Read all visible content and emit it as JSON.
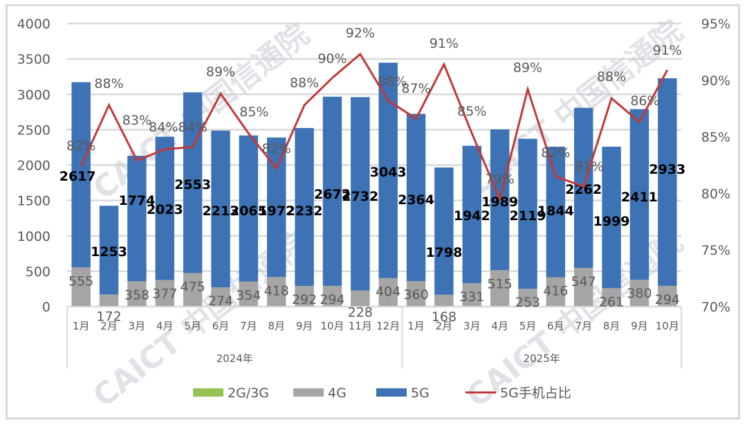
{
  "chart_data": {
    "type": "bar",
    "subtype": "stacked bar + line (dual axis)",
    "title": "",
    "categories": [
      "1月",
      "2月",
      "3月",
      "4月",
      "5月",
      "6月",
      "7月",
      "8月",
      "9月",
      "10月",
      "11月",
      "12月",
      "1月",
      "2月",
      "3月",
      "4月",
      "5月",
      "6月",
      "7月",
      "8月",
      "9月",
      "10月"
    ],
    "category_groups": [
      {
        "label": "2024年",
        "start": 0,
        "count": 12
      },
      {
        "label": "2025年",
        "start": 12,
        "count": 10
      }
    ],
    "series": [
      {
        "name": "2G/3G",
        "type": "bar",
        "axis": "left",
        "color": "#92c353",
        "values": [
          0,
          0,
          0,
          0,
          0,
          0,
          0,
          0,
          0,
          0,
          0,
          0,
          0,
          0,
          0,
          0,
          0,
          0,
          0,
          0,
          0,
          0
        ]
      },
      {
        "name": "4G",
        "type": "bar",
        "axis": "left",
        "color": "#a5a5a5",
        "values": [
          555,
          172,
          358,
          377,
          475,
          274,
          354,
          418,
          292,
          294,
          228,
          404,
          360,
          168,
          331,
          515,
          253,
          416,
          547,
          261,
          380,
          294
        ]
      },
      {
        "name": "5G",
        "type": "bar",
        "axis": "left",
        "color": "#3d72b4",
        "values": [
          2617,
          1253,
          1774,
          2023,
          2553,
          2213,
          2065,
          1972,
          2232,
          2672,
          2732,
          3043,
          2364,
          1798,
          1942,
          1989,
          2119,
          1844,
          2262,
          1999,
          2411,
          2933
        ]
      },
      {
        "name": "5G手机占比",
        "type": "line",
        "axis": "right",
        "color": "#c0393b",
        "values": [
          82,
          88,
          83,
          84,
          84,
          89,
          85,
          82,
          88,
          90,
          92,
          88,
          87,
          91,
          85,
          79,
          89,
          82,
          81,
          88,
          86,
          91
        ],
        "unit": "%"
      }
    ],
    "left_axis": {
      "min": 0,
      "max": 4000,
      "ticks": [
        0,
        500,
        1000,
        1500,
        2000,
        2500,
        3000,
        3500,
        4000
      ]
    },
    "right_axis": {
      "min": 70,
      "max": 95,
      "ticks": [
        "70%",
        "75%",
        "80%",
        "85%",
        "90%",
        "95%"
      ]
    },
    "grid": true,
    "legend_position": "bottom",
    "watermark": [
      "CAICT 中国信通院"
    ]
  },
  "legend": [
    {
      "label": "2G/3G",
      "color": "#92c353",
      "kind": "box"
    },
    {
      "label": "4G",
      "color": "#a5a5a5",
      "kind": "box"
    },
    {
      "label": "5G",
      "color": "#3d72b4",
      "kind": "box"
    },
    {
      "label": "5G手机占比",
      "color": "#c0393b",
      "kind": "line"
    }
  ]
}
